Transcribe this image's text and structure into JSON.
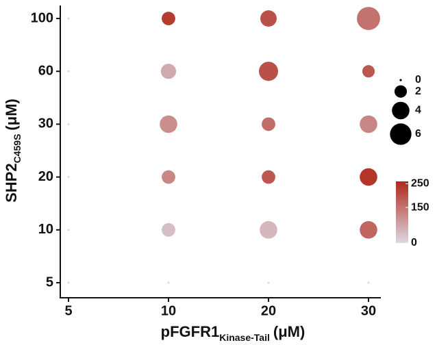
{
  "chart_data": {
    "type": "bubble",
    "xlabel": {
      "main": "pFGFR1",
      "sub": "Kinase-Tail",
      "unit": "(μM)"
    },
    "ylabel": {
      "main": "SHP2",
      "sub": "C459S",
      "unit": "(μM)"
    },
    "xcategories": [
      5,
      10,
      20,
      30
    ],
    "ycategories": [
      5,
      10,
      20,
      30,
      60,
      100
    ],
    "x": [
      5,
      5,
      5,
      5,
      5,
      5,
      10,
      10,
      10,
      10,
      10,
      10,
      20,
      20,
      20,
      20,
      20,
      20,
      30,
      30,
      30,
      30,
      30,
      30
    ],
    "y": [
      5,
      10,
      20,
      30,
      60,
      100,
      5,
      10,
      20,
      30,
      60,
      100,
      5,
      10,
      20,
      30,
      60,
      100,
      5,
      10,
      20,
      30,
      60,
      100
    ],
    "sizes": [
      0,
      0,
      0,
      0,
      0,
      0,
      0,
      2.4,
      2.4,
      4,
      3,
      2.4,
      0,
      4,
      2.4,
      2.4,
      4.8,
      3.5,
      0,
      4,
      4,
      4,
      2,
      7
    ],
    "values": [
      0,
      0,
      0,
      0,
      0,
      0,
      0,
      40,
      120,
      110,
      70,
      230,
      0,
      50,
      190,
      160,
      200,
      200,
      0,
      170,
      240,
      120,
      190,
      150
    ],
    "size_legend": [
      0,
      2,
      4,
      6
    ],
    "size_color": "#000000",
    "color_range": [
      "#ddd8e3",
      "#b0281a"
    ],
    "clim": [
      0,
      260
    ],
    "cticks": [
      0,
      150,
      250
    ]
  }
}
